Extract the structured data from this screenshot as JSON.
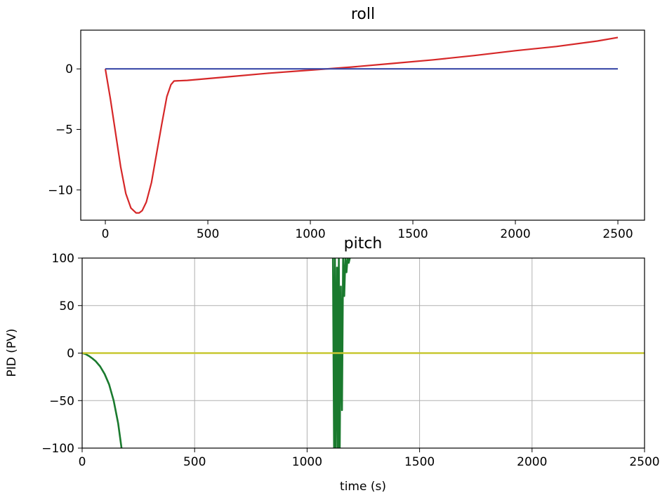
{
  "chart_data": [
    {
      "type": "line",
      "title": "roll",
      "xlabel": "",
      "ylabel": "",
      "xlim": [
        -120,
        2630
      ],
      "ylim": [
        -12.5,
        3.2
      ],
      "xticks": [
        0,
        500,
        1000,
        1500,
        2000,
        2500
      ],
      "xtick_labels": [
        "0",
        "500",
        "1000",
        "1500",
        "2000",
        "2500"
      ],
      "yticks": [
        0,
        -5,
        -10
      ],
      "ytick_labels": [
        "0",
        "−5",
        "−10"
      ],
      "grid": false,
      "series": [
        {
          "color": "#d62728",
          "x": [
            0,
            25,
            50,
            75,
            100,
            125,
            150,
            165,
            180,
            200,
            225,
            250,
            275,
            300,
            320,
            335,
            400,
            600,
            800,
            1000,
            1200,
            1400,
            1600,
            1800,
            2000,
            2200,
            2400,
            2500
          ],
          "y": [
            0,
            -2.5,
            -5.3,
            -8.1,
            -10.3,
            -11.5,
            -11.9,
            -11.9,
            -11.7,
            -11.0,
            -9.4,
            -7.0,
            -4.6,
            -2.3,
            -1.3,
            -1.0,
            -0.95,
            -0.65,
            -0.35,
            -0.1,
            0.15,
            0.45,
            0.75,
            1.1,
            1.5,
            1.85,
            2.3,
            2.6
          ]
        },
        {
          "color": "#3b4aa8",
          "x": [
            0,
            2500
          ],
          "y": [
            0,
            0
          ]
        }
      ]
    },
    {
      "type": "line",
      "title": "pitch",
      "xlabel": "time (s)",
      "ylabel": "PID (PV)",
      "xlim": [
        0,
        2500
      ],
      "ylim": [
        -100,
        100
      ],
      "xticks": [
        0,
        500,
        1000,
        1500,
        2000,
        2500
      ],
      "xtick_labels": [
        "0",
        "500",
        "1000",
        "1500",
        "2000",
        "2500"
      ],
      "yticks": [
        100,
        50,
        0,
        -50,
        -100
      ],
      "ytick_labels": [
        "100",
        "50",
        "0",
        "−50",
        "−100"
      ],
      "grid": true,
      "series": [
        {
          "color": "#1a7a2e",
          "x": [
            0,
            15,
            30,
            45,
            60,
            80,
            100,
            120,
            140,
            160,
            175
          ],
          "y": [
            0,
            -1,
            -3,
            -5.5,
            -8.5,
            -14,
            -22,
            -33,
            -50,
            -74,
            -100
          ]
        },
        {
          "color": "#1a7a2e",
          "x": [
            1115,
            1120,
            1124,
            1128,
            1133,
            1137,
            1141,
            1145,
            1150,
            1155,
            1160,
            1165,
            1170,
            1175,
            1180,
            1185,
            1190
          ],
          "y": [
            100,
            -100,
            100,
            -100,
            90,
            -100,
            100,
            -100,
            70,
            -60,
            100,
            60,
            100,
            85,
            100,
            95,
            100
          ]
        },
        {
          "color": "#c8c832",
          "x": [
            0,
            2500
          ],
          "y": [
            0,
            0
          ]
        }
      ]
    }
  ]
}
